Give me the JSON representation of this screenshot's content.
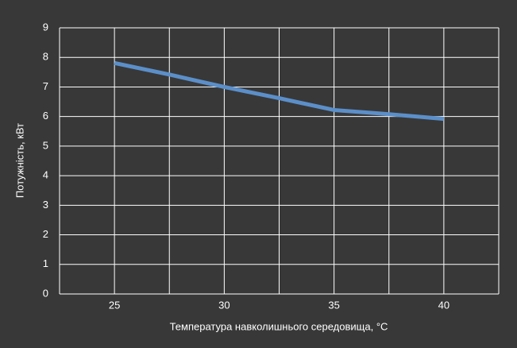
{
  "chart_data": {
    "type": "line",
    "x_label": "Температура навколишнього середовища, °C",
    "y_label": "Потужність, кВт",
    "x": [
      25,
      27.5,
      30,
      32.5,
      35,
      37.5,
      40
    ],
    "series": [
      {
        "color": "#5b8fc9",
        "values": [
          7.81,
          7.42,
          7.0,
          6.62,
          6.22,
          6.08,
          5.92
        ]
      }
    ],
    "xlim": [
      22.5,
      42.5
    ],
    "xticks": [
      25,
      30,
      35,
      40
    ],
    "xgrid": [
      22.5,
      25,
      27.5,
      30,
      32.5,
      35,
      37.5,
      40,
      42.5
    ],
    "ylim": [
      0,
      9
    ],
    "yticks": [
      0,
      1,
      2,
      3,
      4,
      5,
      6,
      7,
      8,
      9
    ],
    "grid": true
  }
}
